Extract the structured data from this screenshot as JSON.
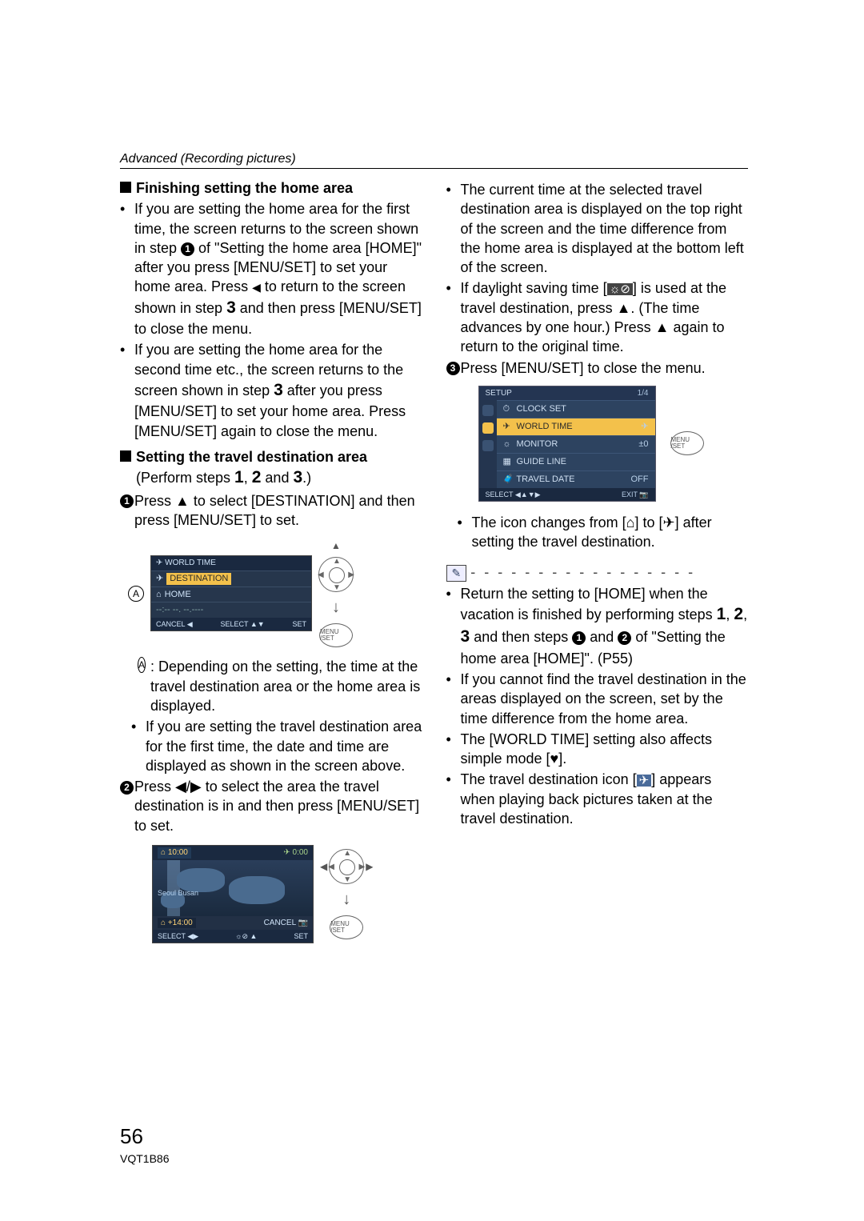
{
  "header": {
    "section": "Advanced (Recording pictures)"
  },
  "left": {
    "h1": "Finishing setting the home area",
    "p1a": "If you are setting the home area for the first time, the screen returns to the screen shown in step ",
    "p1b": " of \"Setting the home area [HOME]\" after you press [MENU/SET] to set your home area. Press ",
    "p1c": " to return to the screen shown in step ",
    "p1d": " and then press [MENU/SET] to close the menu.",
    "p2a": "If you are setting the home area for the second time etc., the screen returns to the screen shown in step ",
    "p2b": " after you press [MENU/SET] to set your home area. Press [MENU/SET] again to close the menu.",
    "h2": "Setting the travel destination area",
    "h2sub_a": "(Perform steps ",
    "h2sub_b": " and ",
    "h2sub_c": ".)",
    "s1": "Press ▲ to select [DESTINATION] and then press [MENU/SET] to set.",
    "ui1": {
      "title": "WORLD TIME",
      "dest": "DESTINATION",
      "home": "HOME",
      "cancel": "CANCEL",
      "select": "SELECT",
      "set": "SET",
      "placeholder": "--:--   --.  --.----",
      "menu": "MENU /SET"
    },
    "a_label": "A",
    "a_desc": ": Depending on the setting, the time at the travel destination area or the home area is displayed.",
    "p3": "If you are setting the travel destination area for the first time, the date and time are displayed as shown in the screen above.",
    "s2": "Press ◀/▶ to select the area the travel destination is in and then press [MENU/SET] to set.",
    "ui2": {
      "home_time": "10:00",
      "dest_time": "0:00",
      "city": "Seoul Busan",
      "tz": "+14:00",
      "cancel": "CANCEL",
      "select": "SELECT",
      "dst_icon": "☼⊘",
      "set": "SET",
      "menu": "MENU /SET"
    }
  },
  "right": {
    "p1": "The current time at the selected travel destination area is displayed on the top right of the screen and the time difference from the home area is displayed at the bottom left of the screen.",
    "p2a": "If daylight saving time [",
    "p2b": "] is used at the travel destination, press ▲. (The time advances by one hour.) Press ▲ again to return to the original time.",
    "s3": "Press [MENU/SET] to close the menu.",
    "setup": {
      "title": "SETUP",
      "page": "1/4",
      "items": [
        {
          "icon": "⏱",
          "label": "CLOCK SET",
          "val": ""
        },
        {
          "icon": "✈",
          "label": "WORLD TIME",
          "val": "✈",
          "hl": true,
          "valclass": "plane"
        },
        {
          "icon": "☼",
          "label": "MONITOR",
          "val": "±0"
        },
        {
          "icon": "▦",
          "label": "GUIDE LINE",
          "val": ""
        },
        {
          "icon": "🧳",
          "label": "TRAVEL DATE",
          "val": "OFF"
        }
      ],
      "select": "SELECT",
      "exit": "EXIT",
      "menu": "MENU /SET"
    },
    "p3a": "The icon changes from [",
    "p3b": "] to [",
    "p3c": "] after setting the travel destination.",
    "note_a": "Return the setting to [HOME] when the vacation is finished by performing steps ",
    "note_b": " and then steps ",
    "note_c": " and ",
    "note_d": " of \"Setting the home area [HOME]\". (P55)",
    "note2": "If you cannot find the travel destination in the areas displayed on the screen, set by the time difference from the home area.",
    "note3a": "The [WORLD TIME] setting also affects simple mode [",
    "note3b": "].",
    "note4a": "The travel destination icon [",
    "note4b": "] appears when playing back pictures taken at the travel destination."
  },
  "footer": {
    "page": "56",
    "code": "VQT1B86"
  },
  "steps": {
    "one": "1",
    "two": "2",
    "three": "3"
  },
  "circ": {
    "one": "1",
    "two": "2",
    "three": "3"
  },
  "dst_glyph": "☼⊘",
  "home_glyph": "⌂",
  "plane_glyph": "✈",
  "heart_glyph": "♥"
}
